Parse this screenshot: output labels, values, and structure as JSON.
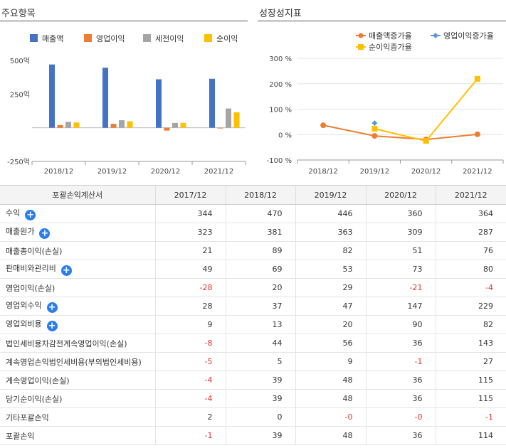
{
  "left_title": "주요항목",
  "right_title": "성장성지표",
  "chart_data": [
    {
      "type": "bar",
      "categories": [
        "2018/12",
        "2019/12",
        "2020/12",
        "2021/12"
      ],
      "series": [
        {
          "name": "매출액",
          "color": "#4472c4",
          "values": [
            470,
            446,
            360,
            364
          ]
        },
        {
          "name": "영업이익",
          "color": "#ed7d31",
          "values": [
            20,
            29,
            -21,
            -4
          ]
        },
        {
          "name": "세전이익",
          "color": "#a5a5a5",
          "values": [
            44,
            56,
            36,
            143
          ]
        },
        {
          "name": "순이익",
          "color": "#ffc000",
          "values": [
            39,
            48,
            36,
            115
          ]
        }
      ],
      "ylim": [
        -250,
        500
      ],
      "yticks": [
        "500억",
        "250억",
        "-250억"
      ],
      "legend": "top"
    },
    {
      "type": "line",
      "categories": [
        "2018/12",
        "2019/12",
        "2020/12",
        "2021/12"
      ],
      "series": [
        {
          "name": "매출액증가율",
          "color": "#ed7d31",
          "marker": "circle",
          "values": [
            36.6,
            -5.1,
            -19.3,
            1.1
          ]
        },
        {
          "name": "영업이익증가율",
          "color": "#5b9bd5",
          "marker": "diamond",
          "values": [
            null,
            45.0,
            null,
            null
          ]
        },
        {
          "name": "순이익증가율",
          "color": "#ffc000",
          "marker": "square",
          "values": [
            null,
            23.1,
            -25.0,
            219.4
          ]
        }
      ],
      "ylim": [
        -100,
        300
      ],
      "yticks": [
        "300 %",
        "200 %",
        "100 %",
        "0 %",
        "-100 %"
      ],
      "legend": "top"
    }
  ],
  "table": {
    "header": [
      "포괄손익계산서",
      "2017/12",
      "2018/12",
      "2019/12",
      "2020/12",
      "2021/12"
    ],
    "rows": [
      {
        "label": "수익",
        "plus": true,
        "values": [
          "344",
          "470",
          "446",
          "360",
          "364"
        ]
      },
      {
        "label": "매출원가",
        "plus": true,
        "values": [
          "323",
          "381",
          "363",
          "309",
          "287"
        ]
      },
      {
        "label": "매출총이익(손실)",
        "plus": false,
        "values": [
          "21",
          "89",
          "82",
          "51",
          "76"
        ]
      },
      {
        "label": "판매비와관리비",
        "plus": true,
        "values": [
          "49",
          "69",
          "53",
          "73",
          "80"
        ]
      },
      {
        "label": "영업이익(손실)",
        "plus": false,
        "values": [
          "-28",
          "20",
          "29",
          "-21",
          "-4"
        ]
      },
      {
        "label": "영업외수익",
        "plus": true,
        "values": [
          "28",
          "37",
          "47",
          "147",
          "229"
        ]
      },
      {
        "label": "영업외비용",
        "plus": true,
        "values": [
          "9",
          "13",
          "20",
          "90",
          "82"
        ]
      },
      {
        "label": "법인세비용차감전계속영업이익(손실)",
        "plus": false,
        "values": [
          "-8",
          "44",
          "56",
          "36",
          "143"
        ]
      },
      {
        "label": "계속영업손익법인세비용(부의법인세비용)",
        "plus": false,
        "values": [
          "-5",
          "5",
          "9",
          "-1",
          "27"
        ]
      },
      {
        "label": "계속영업이익(손실)",
        "plus": false,
        "values": [
          "-4",
          "39",
          "48",
          "36",
          "115"
        ]
      },
      {
        "label": "당기순이익(손실)",
        "plus": false,
        "values": [
          "-4",
          "39",
          "48",
          "36",
          "115"
        ]
      },
      {
        "label": "기타포괄손익",
        "plus": false,
        "values": [
          "2",
          "0",
          "-0",
          "-0",
          "-1"
        ]
      },
      {
        "label": "포괄손익",
        "plus": false,
        "values": [
          "-1",
          "39",
          "48",
          "36",
          "114"
        ]
      }
    ]
  }
}
